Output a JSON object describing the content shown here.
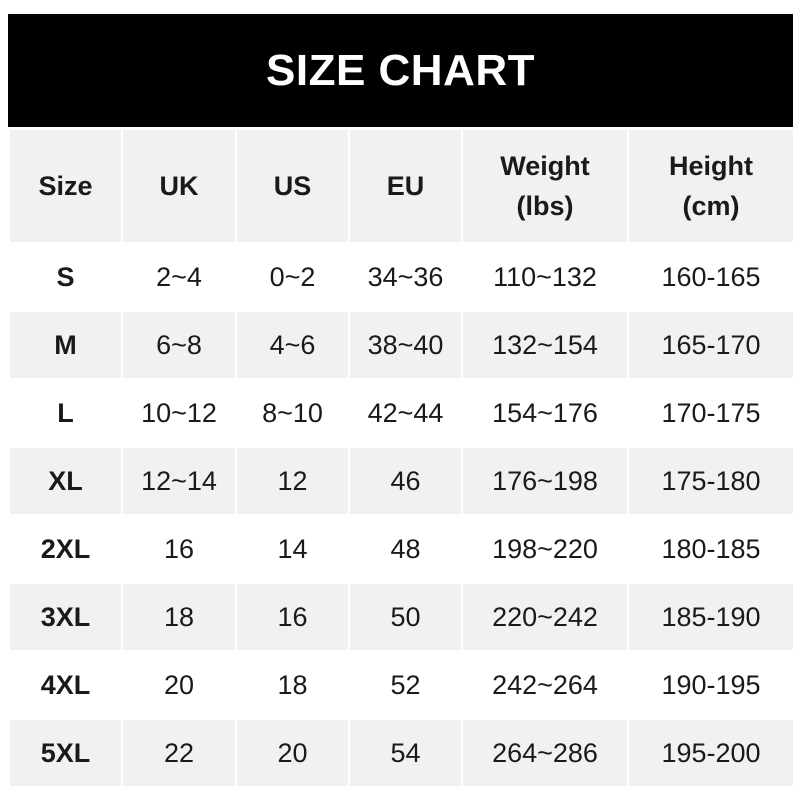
{
  "title": "SIZE CHART",
  "columns": [
    {
      "line1": "Size",
      "line2": ""
    },
    {
      "line1": "UK",
      "line2": ""
    },
    {
      "line1": "US",
      "line2": ""
    },
    {
      "line1": "EU",
      "line2": ""
    },
    {
      "line1": "Weight",
      "line2": "(lbs)"
    },
    {
      "line1": "Height",
      "line2": "(cm)"
    }
  ],
  "rows": [
    [
      "S",
      "2~4",
      "0~2",
      "34~36",
      "110~132",
      "160-165"
    ],
    [
      "M",
      "6~8",
      "4~6",
      "38~40",
      "132~154",
      "165-170"
    ],
    [
      "L",
      "10~12",
      "8~10",
      "42~44",
      "154~176",
      "170-175"
    ],
    [
      "XL",
      "12~14",
      "12",
      "46",
      "176~198",
      "175-180"
    ],
    [
      "2XL",
      "16",
      "14",
      "48",
      "198~220",
      "180-185"
    ],
    [
      "3XL",
      "18",
      "16",
      "50",
      "220~242",
      "185-190"
    ],
    [
      "4XL",
      "20",
      "18",
      "52",
      "242~264",
      "190-195"
    ],
    [
      "5XL",
      "22",
      "20",
      "54",
      "264~286",
      "195-200"
    ]
  ]
}
